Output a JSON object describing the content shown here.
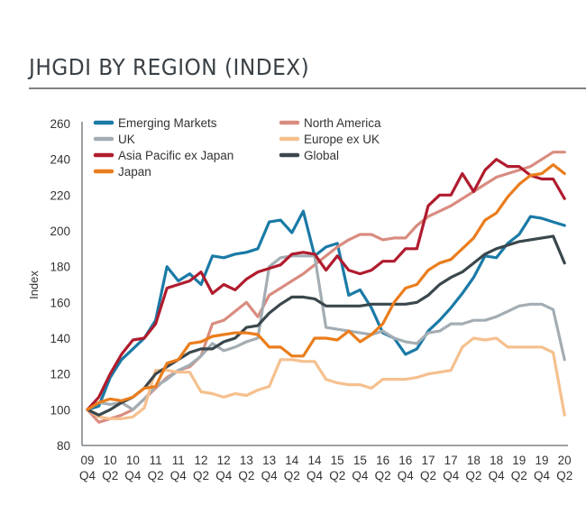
{
  "title": "JHGDI BY REGION (INDEX)",
  "chart_data": {
    "type": "line",
    "title": "JHGDI BY REGION (INDEX)",
    "xlabel": "",
    "ylabel": "Index",
    "ylim": [
      80,
      260
    ],
    "yticks": [
      80,
      100,
      120,
      140,
      160,
      180,
      200,
      220,
      240,
      260
    ],
    "grid": false,
    "legend_position": "top-left",
    "x_tick_labels": [
      [
        "09",
        "Q4"
      ],
      [
        "10",
        "Q2"
      ],
      [
        "10",
        "Q4"
      ],
      [
        "11",
        "Q2"
      ],
      [
        "11",
        "Q4"
      ],
      [
        "12",
        "Q2"
      ],
      [
        "12",
        "Q4"
      ],
      [
        "13",
        "Q2"
      ],
      [
        "13",
        "Q4"
      ],
      [
        "14",
        "Q2"
      ],
      [
        "14",
        "Q4"
      ],
      [
        "15",
        "Q2"
      ],
      [
        "15",
        "Q4"
      ],
      [
        "16",
        "Q2"
      ],
      [
        "16",
        "Q4"
      ],
      [
        "17",
        "Q2"
      ],
      [
        "17",
        "Q4"
      ],
      [
        "18",
        "Q2"
      ],
      [
        "18",
        "Q4"
      ],
      [
        "19",
        "Q2"
      ],
      [
        "19",
        "Q4"
      ],
      [
        "20",
        "Q2"
      ]
    ],
    "x": [
      "2009Q4",
      "2010Q1",
      "2010Q2",
      "2010Q3",
      "2010Q4",
      "2011Q1",
      "2011Q2",
      "2011Q3",
      "2011Q4",
      "2012Q1",
      "2012Q2",
      "2012Q3",
      "2012Q4",
      "2013Q1",
      "2013Q2",
      "2013Q3",
      "2013Q4",
      "2014Q1",
      "2014Q2",
      "2014Q3",
      "2014Q4",
      "2015Q1",
      "2015Q2",
      "2015Q3",
      "2015Q4",
      "2016Q1",
      "2016Q2",
      "2016Q3",
      "2016Q4",
      "2017Q1",
      "2017Q2",
      "2017Q3",
      "2017Q4",
      "2018Q1",
      "2018Q2",
      "2018Q3",
      "2018Q4",
      "2019Q1",
      "2019Q2",
      "2019Q3",
      "2019Q4",
      "2020Q1",
      "2020Q2"
    ],
    "series": [
      {
        "name": "Emerging Markets",
        "color": "#1a7aa6",
        "values": [
          100,
          102,
          118,
          128,
          134,
          140,
          150,
          180,
          172,
          176,
          170,
          186,
          185,
          187,
          188,
          190,
          205,
          206,
          199,
          211,
          186,
          191,
          193,
          164,
          167,
          157,
          143,
          140,
          131,
          134,
          144,
          150,
          157,
          165,
          174,
          186,
          185,
          193,
          198,
          208,
          207,
          205,
          203
        ]
      },
      {
        "name": "North America",
        "color": "#d98c80",
        "values": [
          100,
          93,
          95,
          97,
          100,
          106,
          112,
          118,
          122,
          124,
          130,
          148,
          150,
          155,
          160,
          152,
          164,
          168,
          172,
          176,
          181,
          186,
          191,
          195,
          198,
          198,
          195,
          196,
          196,
          203,
          208,
          211,
          214,
          218,
          222,
          226,
          230,
          232,
          234,
          236,
          240,
          244,
          244
        ]
      },
      {
        "name": "UK",
        "color": "#a3adb3",
        "values": [
          100,
          104,
          103,
          104,
          100,
          106,
          113,
          117,
          122,
          125,
          130,
          137,
          133,
          135,
          138,
          140,
          180,
          185,
          186,
          186,
          186,
          146,
          145,
          144,
          143,
          142,
          144,
          140,
          138,
          137,
          143,
          144,
          148,
          148,
          150,
          150,
          152,
          155,
          158,
          159,
          159,
          156,
          128
        ]
      },
      {
        "name": "Europe ex UK",
        "color": "#f5c08e",
        "values": [
          100,
          96,
          95,
          95,
          96,
          101,
          122,
          122,
          121,
          121,
          110,
          109,
          107,
          109,
          108,
          111,
          113,
          128,
          128,
          127,
          127,
          117,
          115,
          114,
          114,
          112,
          117,
          117,
          117,
          118,
          120,
          121,
          122,
          135,
          140,
          139,
          140,
          135,
          135,
          135,
          135,
          132,
          97
        ]
      },
      {
        "name": "Asia Pacific ex Japan",
        "color": "#b01c2e",
        "values": [
          100,
          107,
          120,
          131,
          139,
          140,
          148,
          168,
          170,
          172,
          177,
          165,
          170,
          167,
          173,
          177,
          179,
          181,
          187,
          188,
          187,
          178,
          186,
          178,
          176,
          178,
          183,
          183,
          190,
          190,
          214,
          220,
          220,
          232,
          222,
          234,
          240,
          236,
          236,
          231,
          229,
          229,
          218
        ]
      },
      {
        "name": "Global",
        "color": "#3a474c",
        "values": [
          100,
          97,
          100,
          104,
          107,
          112,
          120,
          124,
          128,
          132,
          134,
          134,
          138,
          140,
          146,
          147,
          154,
          159,
          163,
          163,
          162,
          158,
          158,
          158,
          158,
          159,
          159,
          159,
          159,
          160,
          164,
          170,
          174,
          177,
          182,
          187,
          190,
          192,
          194,
          195,
          196,
          197,
          182
        ]
      },
      {
        "name": "Japan",
        "color": "#ea7d1c",
        "values": [
          100,
          104,
          106,
          105,
          107,
          112,
          113,
          126,
          128,
          137,
          138,
          141,
          142,
          143,
          143,
          142,
          135,
          135,
          130,
          130,
          140,
          140,
          139,
          144,
          138,
          142,
          148,
          160,
          168,
          170,
          178,
          182,
          184,
          190,
          196,
          206,
          210,
          219,
          226,
          231,
          232,
          237,
          232
        ]
      }
    ],
    "legend": [
      {
        "name": "Emerging Markets",
        "color": "#1a7aa6"
      },
      {
        "name": "UK",
        "color": "#a3adb3"
      },
      {
        "name": "Asia Pacific ex Japan",
        "color": "#b01c2e"
      },
      {
        "name": "Japan",
        "color": "#ea7d1c"
      },
      {
        "name": "North America",
        "color": "#d98c80"
      },
      {
        "name": "Europe ex UK",
        "color": "#f5c08e"
      },
      {
        "name": "Global",
        "color": "#3a474c"
      }
    ]
  }
}
